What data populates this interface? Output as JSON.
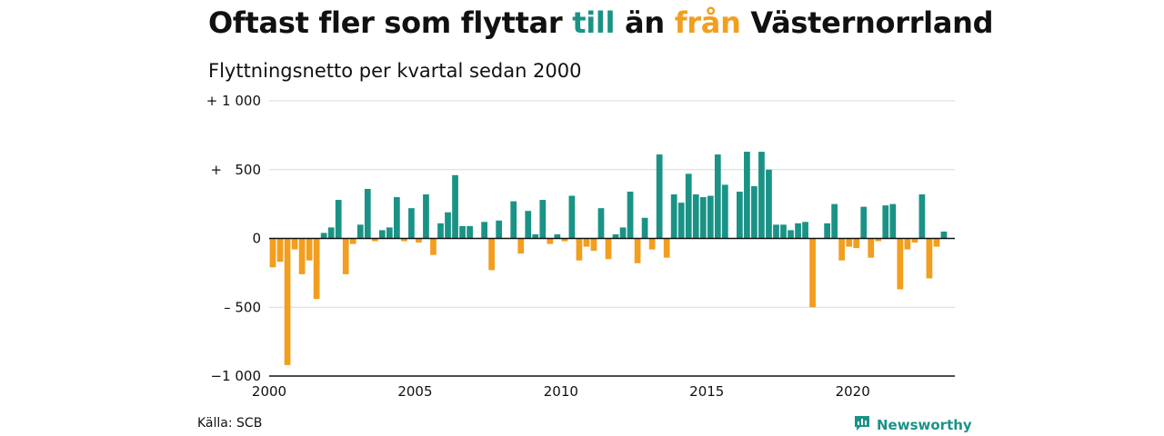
{
  "title_parts": [
    "Oftast fler som flyttar ",
    "till",
    " än ",
    "från",
    " Västernorrland"
  ],
  "subtitle": "Flyttningsnetto per kvartal sedan 2000",
  "source": "Källa: SCB",
  "brand": "Newsworthy",
  "colors": {
    "positive": "#1a9386",
    "negative": "#f29e1f",
    "axis": "#111111",
    "grid": "#d9d9d9",
    "brand": "#1a9386"
  },
  "chart_data": {
    "type": "bar",
    "title": "Oftast fler som flyttar till än från Västernorrland",
    "subtitle": "Flyttningsnetto per kvartal sedan 2000",
    "xlabel": "",
    "ylabel": "",
    "ylim": [
      -1000,
      1000
    ],
    "xlim": [
      2000,
      2023.5
    ],
    "yticks": [
      1000,
      500,
      0,
      -500,
      -1000
    ],
    "ytick_labels": [
      "+ 1 000",
      "+   500",
      "0",
      "– 500",
      "−1 000"
    ],
    "xticks": [
      2000,
      2005,
      2010,
      2015,
      2020
    ],
    "xtick_labels": [
      "2000",
      "2005",
      "2010",
      "2015",
      "2020"
    ],
    "grid": true,
    "start": "2000 Q1",
    "values": [
      -210,
      -170,
      -920,
      -80,
      -260,
      -160,
      -440,
      40,
      80,
      280,
      -260,
      -40,
      100,
      360,
      -20,
      60,
      80,
      300,
      -20,
      220,
      -30,
      320,
      -120,
      110,
      190,
      460,
      90,
      90,
      0,
      120,
      -230,
      130,
      0,
      270,
      -110,
      200,
      30,
      280,
      -40,
      30,
      -20,
      310,
      -160,
      -60,
      -90,
      220,
      -150,
      30,
      80,
      340,
      -180,
      150,
      -80,
      610,
      -140,
      320,
      260,
      470,
      320,
      300,
      310,
      610,
      390,
      0,
      340,
      630,
      380,
      630,
      500,
      100,
      100,
      60,
      110,
      120,
      -500,
      0,
      110,
      250,
      -160,
      -60,
      -70,
      230,
      -140,
      -20,
      240,
      250,
      -370,
      -80,
      -30,
      320,
      -290,
      -60,
      50
    ]
  }
}
